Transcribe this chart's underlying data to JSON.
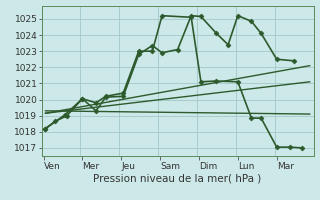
{
  "background_color": "#cde8e8",
  "grid_color": "#a8cccc",
  "line_color": "#2d5a2d",
  "xlabel": "Pression niveau de la mer( hPa )",
  "x_labels": [
    "Ven",
    "Mer",
    "Jeu",
    "Sam",
    "Dim",
    "Lun",
    "Mar"
  ],
  "x_sep_positions": [
    0,
    1,
    2,
    3,
    4,
    5,
    6,
    7
  ],
  "ylim": [
    1016.5,
    1025.8
  ],
  "xlim": [
    0,
    7
  ],
  "yticks": [
    1017,
    1018,
    1019,
    1020,
    1021,
    1022,
    1023,
    1024,
    1025
  ],
  "series": [
    {
      "x": [
        0.1,
        0.35,
        0.65,
        1.05,
        1.4,
        1.65,
        2.1,
        2.5,
        2.85,
        3.1,
        3.5,
        3.85,
        4.1,
        4.5,
        4.8,
        5.05,
        5.4,
        5.65,
        6.05,
        6.5
      ],
      "y": [
        1018.2,
        1018.65,
        1019.0,
        1020.05,
        1019.3,
        1020.15,
        1020.2,
        1022.8,
        1023.35,
        1022.9,
        1023.1,
        1025.2,
        1025.15,
        1024.1,
        1023.4,
        1025.2,
        1024.85,
        1024.1,
        1022.5,
        1022.4
      ],
      "lw": 1.2,
      "marker": "D",
      "ms": 2.5
    },
    {
      "x": [
        0.1,
        0.6,
        1.05,
        1.4,
        1.65,
        2.1,
        2.5,
        2.85,
        3.1,
        3.85,
        4.1,
        4.5,
        5.05,
        5.4,
        5.65,
        6.05,
        6.4,
        6.7
      ],
      "y": [
        1018.2,
        1019.05,
        1020.05,
        1019.8,
        1020.2,
        1020.4,
        1023.0,
        1023.0,
        1025.2,
        1025.1,
        1021.1,
        1021.15,
        1021.1,
        1018.85,
        1018.85,
        1017.05,
        1017.05,
        1017.0
      ],
      "lw": 1.2,
      "marker": "D",
      "ms": 2.5
    },
    {
      "x": [
        0.1,
        6.9
      ],
      "y": [
        1019.15,
        1022.1
      ],
      "lw": 1.0,
      "marker": null,
      "ms": 0
    },
    {
      "x": [
        0.1,
        6.9
      ],
      "y": [
        1019.15,
        1021.1
      ],
      "lw": 1.0,
      "marker": null,
      "ms": 0
    },
    {
      "x": [
        0.1,
        6.9
      ],
      "y": [
        1019.3,
        1019.1
      ],
      "lw": 1.0,
      "marker": null,
      "ms": 0
    }
  ]
}
